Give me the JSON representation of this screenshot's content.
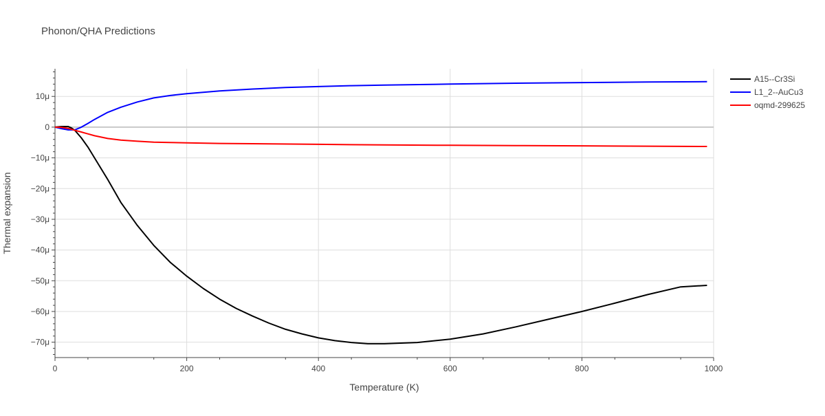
{
  "chart_data": {
    "type": "line",
    "title": "Phonon/QHA Predictions",
    "xlabel": "Temperature (K)",
    "ylabel": "Thermal expansion",
    "xlim": [
      0,
      1000
    ],
    "ylim": [
      -75,
      19
    ],
    "x_ticks": [
      0,
      200,
      400,
      600,
      800,
      1000
    ],
    "x_tick_labels": [
      "0",
      "200",
      "400",
      "600",
      "800",
      "1000"
    ],
    "y_ticks": [
      10,
      0,
      -10,
      -20,
      -30,
      -40,
      -50,
      -60,
      -70
    ],
    "y_tick_labels": [
      "10μ",
      "0",
      "−10μ",
      "−20μ",
      "−30μ",
      "−40μ",
      "−50μ",
      "−60μ",
      "−70μ"
    ],
    "grid": true,
    "legend_position": "top-right",
    "series": [
      {
        "name": "A15--Cr3Si",
        "color": "#000000",
        "x": [
          0,
          10,
          20,
          25,
          30,
          40,
          50,
          60,
          80,
          100,
          125,
          150,
          175,
          200,
          225,
          250,
          275,
          300,
          325,
          350,
          375,
          400,
          425,
          450,
          475,
          500,
          550,
          600,
          650,
          700,
          750,
          800,
          850,
          900,
          950,
          990
        ],
        "y": [
          0,
          0.2,
          0.2,
          -0.3,
          -1,
          -3.5,
          -6.5,
          -10,
          -17,
          -24.5,
          -32,
          -38.5,
          -44,
          -48.5,
          -52.5,
          -56,
          -59,
          -61.5,
          -63.8,
          -65.8,
          -67.3,
          -68.6,
          -69.5,
          -70.1,
          -70.5,
          -70.5,
          -70.1,
          -69,
          -67.3,
          -65,
          -62.5,
          -60,
          -57.3,
          -54.5,
          -52,
          -51.5
        ]
      },
      {
        "name": "L1_2--AuCu3",
        "color": "#0000ff",
        "x": [
          0,
          10,
          20,
          30,
          40,
          50,
          60,
          80,
          100,
          125,
          150,
          175,
          200,
          250,
          300,
          350,
          400,
          450,
          500,
          600,
          700,
          800,
          900,
          990
        ],
        "y": [
          0,
          -0.5,
          -0.9,
          -0.9,
          0,
          1.2,
          2.5,
          4.8,
          6.5,
          8.2,
          9.5,
          10.3,
          10.9,
          11.8,
          12.4,
          12.9,
          13.2,
          13.5,
          13.7,
          14,
          14.3,
          14.5,
          14.7,
          14.8
        ]
      },
      {
        "name": "oqmd-299625",
        "color": "#ff0000",
        "x": [
          0,
          10,
          20,
          30,
          40,
          50,
          60,
          80,
          100,
          125,
          150,
          175,
          200,
          250,
          300,
          400,
          500,
          600,
          700,
          800,
          900,
          990
        ],
        "y": [
          0,
          -0.1,
          -0.4,
          -1,
          -1.6,
          -2.2,
          -2.8,
          -3.7,
          -4.2,
          -4.6,
          -4.9,
          -5,
          -5.1,
          -5.3,
          -5.4,
          -5.6,
          -5.8,
          -5.9,
          -6,
          -6.1,
          -6.2,
          -6.3
        ]
      }
    ]
  }
}
